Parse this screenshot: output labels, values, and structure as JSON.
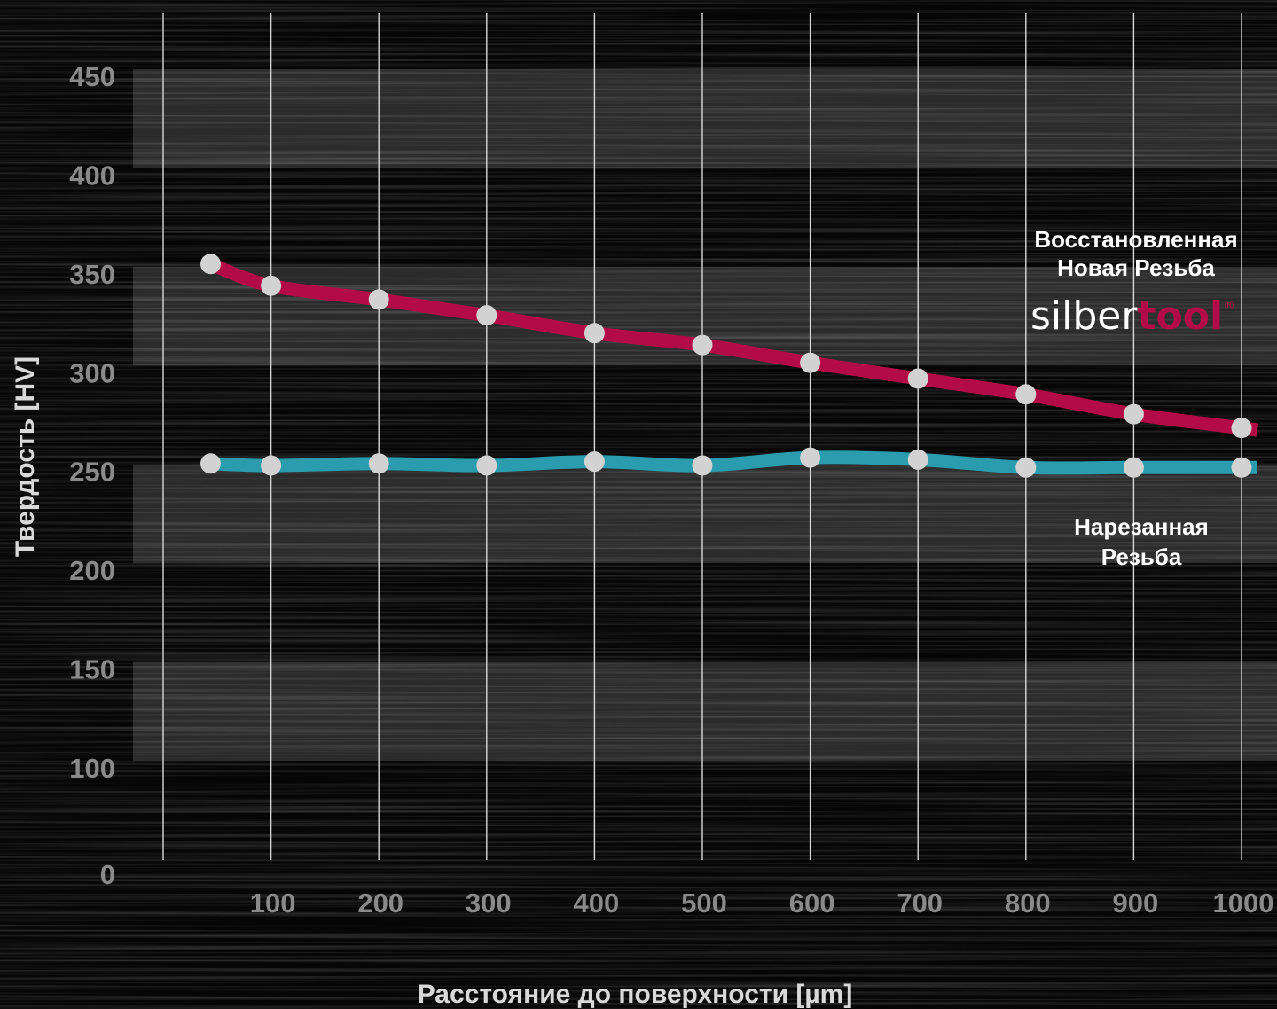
{
  "chart_data": {
    "type": "line",
    "xlabel": "Расстояние до поверхности [µm]",
    "ylabel": "Твердость [HV]",
    "x_ticks": [
      100,
      200,
      300,
      400,
      500,
      600,
      700,
      800,
      900,
      1000
    ],
    "y_ticks": [
      0,
      100,
      150,
      200,
      250,
      300,
      350,
      400,
      450
    ],
    "xlim": [
      0,
      1000
    ],
    "ylim": [
      0,
      450
    ],
    "grid": "vertical lines, alternating horizontal bands",
    "series": [
      {
        "name": "Восстановленная Новая Резьба",
        "label_lines": [
          "Восстановленная",
          "Новая Резьба"
        ],
        "color": "#b30b45",
        "x": [
          44,
          100,
          200,
          300,
          400,
          500,
          600,
          700,
          800,
          900,
          1000
        ],
        "y": [
          355,
          344,
          337,
          329,
          320,
          314,
          305,
          297,
          289,
          279,
          272
        ]
      },
      {
        "name": "Нарезанная Резьба",
        "label_lines": [
          "Нарезанная",
          "Резьба"
        ],
        "color": "#2a9cad",
        "x": [
          44,
          100,
          200,
          300,
          400,
          500,
          600,
          700,
          800,
          900,
          1000
        ],
        "y": [
          254,
          253,
          254,
          253,
          255,
          253,
          257,
          256,
          252,
          252,
          252
        ]
      }
    ],
    "point_color": "#d2d2d2"
  },
  "logo": {
    "part1": "silber",
    "part2": "tool",
    "mark": "®",
    "color1": "#ffffff",
    "color2": "#b30b45"
  }
}
